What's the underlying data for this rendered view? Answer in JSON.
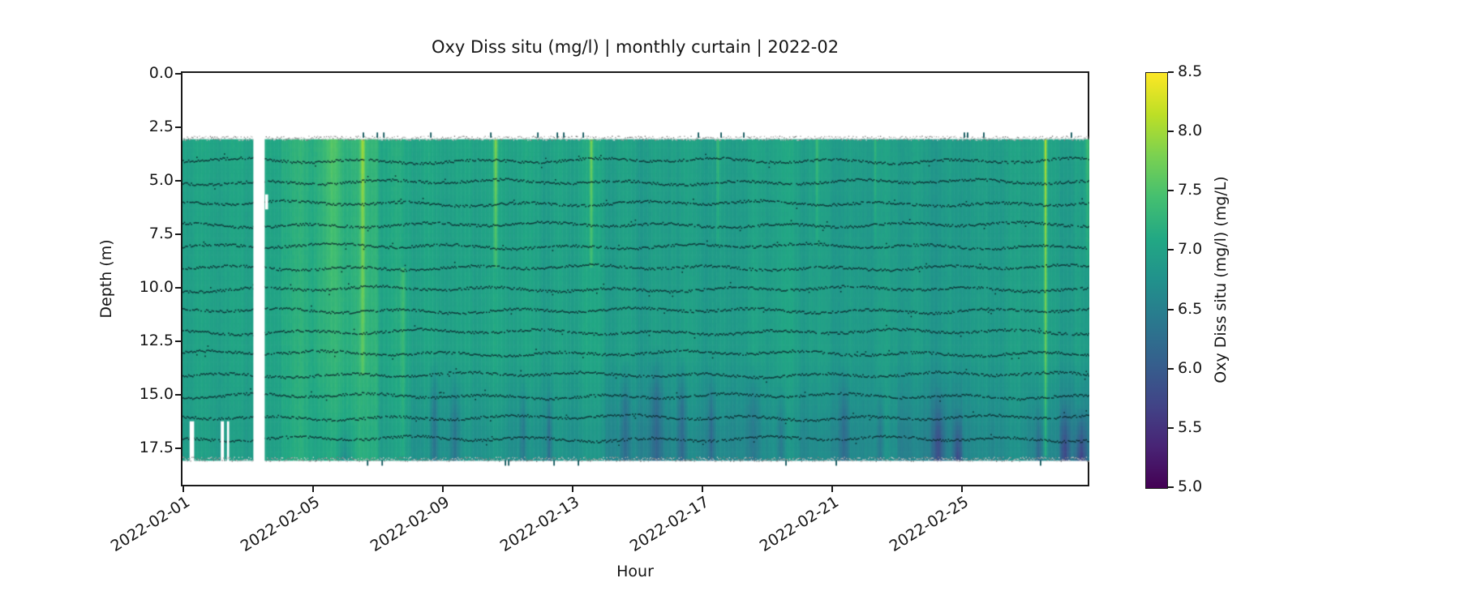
{
  "figure": {
    "title": "Oxy Diss situ (mg/l) | monthly curtain | 2022-02",
    "background": "#ffffff",
    "text_color": "#151515"
  },
  "axes": {
    "xlabel": "Hour",
    "ylabel": "Depth (m)",
    "x_ticks": [
      {
        "label": "2022-02-01",
        "day": 0
      },
      {
        "label": "2022-02-05",
        "day": 4
      },
      {
        "label": "2022-02-09",
        "day": 8
      },
      {
        "label": "2022-02-13",
        "day": 12
      },
      {
        "label": "2022-02-17",
        "day": 16
      },
      {
        "label": "2022-02-21",
        "day": 20
      },
      {
        "label": "2022-02-25",
        "day": 24
      }
    ],
    "y_ticks": [
      {
        "label": "0.0",
        "depth": 0.0
      },
      {
        "label": "2.5",
        "depth": 2.5
      },
      {
        "label": "5.0",
        "depth": 5.0
      },
      {
        "label": "7.5",
        "depth": 7.5
      },
      {
        "label": "10.0",
        "depth": 10.0
      },
      {
        "label": "12.5",
        "depth": 12.5
      },
      {
        "label": "15.0",
        "depth": 15.0
      },
      {
        "label": "17.5",
        "depth": 17.5
      }
    ]
  },
  "colorbar": {
    "label": "Oxy Diss situ (mg/l) (mg/L)",
    "vmin": 5.0,
    "vmax": 8.5,
    "ticks": [
      {
        "label": "8.5",
        "value": 8.5
      },
      {
        "label": "8.0",
        "value": 8.0
      },
      {
        "label": "7.5",
        "value": 7.5
      },
      {
        "label": "7.0",
        "value": 7.0
      },
      {
        "label": "6.5",
        "value": 6.5
      },
      {
        "label": "6.0",
        "value": 6.0
      },
      {
        "label": "5.5",
        "value": 5.5
      },
      {
        "label": "5.0",
        "value": 5.0
      }
    ],
    "colormap": "viridis",
    "stops": [
      [
        0.0,
        "#440154"
      ],
      [
        0.1,
        "#482475"
      ],
      [
        0.2,
        "#414487"
      ],
      [
        0.3,
        "#355f8d"
      ],
      [
        0.4,
        "#2a788e"
      ],
      [
        0.5,
        "#21918c"
      ],
      [
        0.6,
        "#22a884"
      ],
      [
        0.7,
        "#44bf70"
      ],
      [
        0.8,
        "#7ad151"
      ],
      [
        0.9,
        "#bddf26"
      ],
      [
        1.0,
        "#fde725"
      ]
    ]
  },
  "chart_data": {
    "type": "heatmap",
    "title": "Oxy Diss situ (mg/l) | monthly curtain | 2022-02",
    "xlabel": "Hour",
    "ylabel": "Depth (m)",
    "month": "2022-02",
    "time_start": "2022-02-01 00:00",
    "time_end": "2022-02-28 23:00",
    "xlim_days": [
      -0.06,
      27.9
    ],
    "ylim_depth_m": [
      19.3,
      0.0
    ],
    "depth_extent_m": [
      3.0,
      18.0
    ],
    "value_units": "mg/L",
    "value_range": [
      5.0,
      8.5
    ],
    "typical_value": 7.0,
    "daily_mean_mgl": [
      7.0,
      7.0,
      7.02,
      7.18,
      7.24,
      7.26,
      7.08,
      7.02,
      7.0,
      7.04,
      7.0,
      6.97,
      7.04,
      6.95,
      6.92,
      6.96,
      6.9,
      6.95,
      7.0,
      6.94,
      6.9,
      6.95,
      6.9,
      6.86,
      6.9,
      6.94,
      7.0,
      6.92
    ],
    "deep_offset_mgl": [
      -0.05,
      -0.08,
      -0.05,
      -0.05,
      -0.15,
      -0.1,
      -0.12,
      -0.22,
      -0.2,
      -0.22,
      -0.25,
      -0.2,
      -0.22,
      -0.3,
      -0.32,
      -0.3,
      -0.28,
      -0.25,
      -0.22,
      -0.28,
      -0.25,
      -0.2,
      -0.35,
      -0.4,
      -0.25,
      -0.22,
      -0.35,
      -0.45
    ],
    "bright_events": [
      {
        "t": 4.55,
        "w": 0.35,
        "dv": 0.22,
        "d0": 3.0,
        "d1": 10.0
      },
      {
        "t": 5.5,
        "w": 0.1,
        "dv": 0.72,
        "d0": 3.0,
        "d1": 14.0
      },
      {
        "t": 6.75,
        "w": 0.12,
        "dv": 0.35,
        "d0": 9.0,
        "d1": 17.8
      },
      {
        "t": 9.6,
        "w": 0.08,
        "dv": 0.85,
        "d0": 3.0,
        "d1": 9.0
      },
      {
        "t": 12.55,
        "w": 0.08,
        "dv": 0.75,
        "d0": 3.0,
        "d1": 9.0
      },
      {
        "t": 16.45,
        "w": 0.07,
        "dv": 0.5,
        "d0": 3.0,
        "d1": 8.0
      },
      {
        "t": 19.5,
        "w": 0.07,
        "dv": 0.45,
        "d0": 3.0,
        "d1": 8.0
      },
      {
        "t": 21.3,
        "w": 0.06,
        "dv": 0.4,
        "d0": 3.0,
        "d1": 8.0
      },
      {
        "t": 26.55,
        "w": 0.06,
        "dv": 1.15,
        "d0": 3.0,
        "d1": 17.8
      },
      {
        "t": 27.85,
        "w": 0.12,
        "dv": 0.45,
        "d0": 3.0,
        "d1": 9.0
      }
    ],
    "dark_deep_events": [
      {
        "t": 4.95,
        "w": 0.35,
        "dv": -0.45,
        "d0": 16.0
      },
      {
        "t": 7.7,
        "w": 0.18,
        "dv": -0.5,
        "d0": 13.0
      },
      {
        "t": 8.35,
        "w": 0.22,
        "dv": -0.45,
        "d0": 13.5
      },
      {
        "t": 10.45,
        "w": 0.15,
        "dv": -0.4,
        "d0": 13.5
      },
      {
        "t": 11.25,
        "w": 0.12,
        "dv": -0.45,
        "d0": 14.0
      },
      {
        "t": 13.6,
        "w": 0.22,
        "dv": -0.5,
        "d0": 13.0
      },
      {
        "t": 14.55,
        "w": 0.28,
        "dv": -0.55,
        "d0": 12.5
      },
      {
        "t": 15.35,
        "w": 0.2,
        "dv": -0.5,
        "d0": 13.0
      },
      {
        "t": 16.25,
        "w": 0.15,
        "dv": -0.45,
        "d0": 13.5
      },
      {
        "t": 17.55,
        "w": 0.3,
        "dv": -0.4,
        "d0": 13.0
      },
      {
        "t": 18.4,
        "w": 0.18,
        "dv": -0.4,
        "d0": 14.0
      },
      {
        "t": 20.35,
        "w": 0.22,
        "dv": -0.45,
        "d0": 13.5
      },
      {
        "t": 21.45,
        "w": 0.15,
        "dv": -0.4,
        "d0": 14.0
      },
      {
        "t": 23.25,
        "w": 0.25,
        "dv": -0.6,
        "d0": 14.5
      },
      {
        "t": 23.85,
        "w": 0.2,
        "dv": -0.75,
        "d0": 15.5
      },
      {
        "t": 26.35,
        "w": 0.15,
        "dv": -0.5,
        "d0": 15.0
      },
      {
        "t": 27.15,
        "w": 0.2,
        "dv": -0.7,
        "d0": 15.0
      },
      {
        "t": 27.65,
        "w": 0.25,
        "dv": -0.9,
        "d0": 15.5
      }
    ],
    "data_gaps": [
      {
        "t0": 2.125,
        "t1": 2.475,
        "d0": 2.9,
        "d1": 18.15
      },
      {
        "t0": 0.16,
        "t1": 0.3,
        "d0": 16.2,
        "d1": 18.1
      },
      {
        "t0": 1.12,
        "t1": 1.22,
        "d0": 16.2,
        "d1": 18.1
      },
      {
        "t0": 1.31,
        "t1": 1.38,
        "d0": 16.2,
        "d1": 18.1
      },
      {
        "t0": 2.49,
        "t1": 2.58,
        "d0": 5.6,
        "d1": 6.3
      }
    ],
    "sensor_trace_depths_m": [
      4,
      5,
      6,
      7,
      8,
      9,
      10,
      11,
      12,
      13,
      14,
      15,
      16,
      17
    ],
    "speckle_edge_depths_m": [
      2.95,
      17.95
    ],
    "edge_tick_times_top": [
      5.52,
      5.95,
      6.15,
      7.6,
      9.45,
      10.9,
      11.5,
      11.7,
      12.3,
      15.85,
      16.55,
      17.25,
      24.05,
      24.15,
      24.65,
      27.35
    ],
    "edge_tick_times_bottom": [
      5.65,
      6.1,
      9.9,
      10.0,
      11.4,
      12.15,
      18.55,
      20.1,
      26.4
    ]
  }
}
